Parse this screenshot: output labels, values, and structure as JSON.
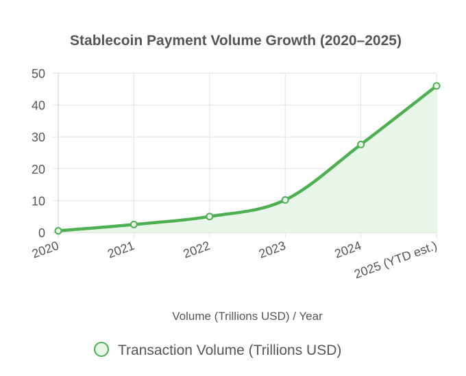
{
  "chart_data": {
    "type": "area",
    "title": "Stablecoin Payment Volume Growth (2020–2025)",
    "xlabel": "Volume (Trillions USD) / Year",
    "ylabel": "",
    "categories": [
      "2020",
      "2021",
      "2022",
      "2023",
      "2024",
      "2025 (YTD est.)"
    ],
    "series": [
      {
        "name": "Transaction Volume (Trillions USD)",
        "values": [
          0.5,
          2.5,
          5.0,
          10.2,
          27.6,
          46.0
        ],
        "color": "#4caf50",
        "fill": "#e8f5e9"
      }
    ],
    "ylim": [
      0,
      50
    ],
    "yticks": [
      "0",
      "10",
      "20",
      "30",
      "40",
      "50"
    ],
    "grid": true,
    "legend": "bottom"
  }
}
